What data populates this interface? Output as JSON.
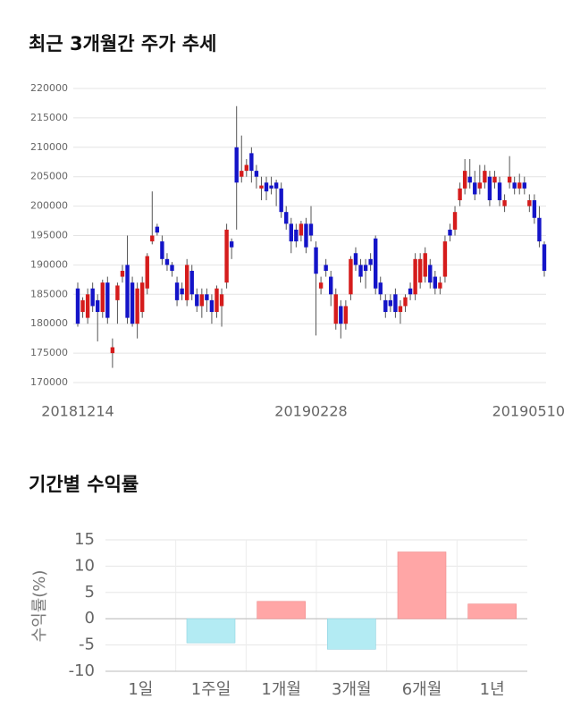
{
  "chart_data": [
    {
      "type": "candlestick",
      "title": "최근 3개월간 주가 추세",
      "categories": [
        "20181214",
        null,
        null,
        null,
        null,
        null,
        null,
        null,
        null,
        null,
        null,
        null,
        null,
        null,
        null,
        null,
        null,
        null,
        null,
        null,
        null,
        null,
        null,
        null,
        null,
        null,
        null,
        null,
        null,
        null,
        null,
        null,
        null,
        null,
        null,
        null,
        null,
        null,
        null,
        null,
        null,
        null,
        null,
        null,
        null,
        null,
        null,
        "20190228",
        null,
        null,
        null,
        null,
        null,
        null,
        null,
        null,
        null,
        null,
        null,
        null,
        null,
        null,
        null,
        null,
        null,
        null,
        null,
        null,
        null,
        null,
        null,
        null,
        null,
        null,
        null,
        null,
        null,
        null,
        null,
        null,
        null,
        null,
        null,
        null,
        null,
        null,
        null,
        null,
        null,
        null,
        null,
        null,
        null,
        null,
        "20190510"
      ],
      "open": [
        186000,
        182000,
        181000,
        186000,
        184000,
        182000,
        187000,
        175000,
        184000,
        188000,
        190000,
        187000,
        180000,
        182000,
        186000,
        194000,
        196500,
        194000,
        191000,
        190000,
        187000,
        186000,
        184000,
        189000,
        185000,
        183000,
        185000,
        184000,
        182000,
        183000,
        187000,
        194000,
        210000,
        205000,
        206000,
        209000,
        206000,
        203000,
        204000,
        203500,
        204000,
        203000,
        199000,
        197000,
        196000,
        195000,
        197000,
        197000,
        193000,
        186000,
        190000,
        188000,
        180000,
        183000,
        180000,
        185000,
        192000,
        190000,
        190000,
        191000,
        194500,
        187000,
        184000,
        184000,
        185000,
        182000,
        183000,
        186000,
        185000,
        187000,
        188000,
        190000,
        188000,
        186000,
        188000,
        196000,
        196000,
        201000,
        203000,
        205000,
        204000,
        203000,
        204000,
        205000,
        204000,
        204000,
        200000,
        204000,
        204000,
        203000,
        204000,
        200000,
        201000,
        198000,
        193500
      ],
      "close": [
        180000,
        184000,
        185000,
        183000,
        182000,
        187000,
        181000,
        176000,
        186500,
        189000,
        181000,
        180000,
        186000,
        187000,
        191500,
        195000,
        195500,
        191000,
        190000,
        189000,
        184000,
        185000,
        190000,
        185000,
        183000,
        185000,
        184000,
        182000,
        186000,
        185000,
        196000,
        193000,
        204000,
        206000,
        207000,
        206000,
        205000,
        203500,
        202500,
        203000,
        203000,
        199000,
        197000,
        194000,
        194000,
        197000,
        193000,
        195000,
        188500,
        187000,
        189000,
        185000,
        185000,
        180000,
        183000,
        191000,
        190000,
        188000,
        189000,
        190000,
        186000,
        185000,
        182000,
        183000,
        182000,
        183000,
        184500,
        185000,
        191000,
        191000,
        192000,
        187000,
        186000,
        187000,
        194000,
        195000,
        199000,
        203000,
        206000,
        204000,
        202000,
        204000,
        206000,
        201000,
        205000,
        201000,
        201000,
        205000,
        203000,
        204000,
        203000,
        201000,
        198000,
        194000,
        189000
      ],
      "high": [
        187000,
        184500,
        186000,
        187000,
        185000,
        187500,
        188000,
        177500,
        187000,
        190000,
        195000,
        188000,
        187000,
        188000,
        192000,
        202500,
        197000,
        195000,
        192000,
        190500,
        188000,
        187000,
        191000,
        190000,
        186000,
        186000,
        186000,
        185000,
        186500,
        186000,
        197000,
        194500,
        217000,
        212000,
        208000,
        210000,
        207000,
        205000,
        205000,
        205000,
        204500,
        204000,
        200000,
        198000,
        197000,
        197500,
        198000,
        200000,
        194000,
        188000,
        191000,
        189000,
        186000,
        184000,
        184000,
        191500,
        193000,
        191000,
        191000,
        192000,
        195000,
        188000,
        185000,
        185000,
        186000,
        184000,
        185000,
        187000,
        192000,
        192000,
        193000,
        191000,
        189000,
        188000,
        195000,
        197000,
        200000,
        204000,
        208000,
        208000,
        206000,
        207000,
        207000,
        206000,
        206000,
        205000,
        202000,
        208500,
        205000,
        205500,
        205000,
        202000,
        202000,
        200000,
        194000
      ],
      "low": [
        179500,
        181000,
        180000,
        182000,
        177000,
        181000,
        180000,
        172500,
        180000,
        187000,
        180000,
        179500,
        177500,
        181000,
        185000,
        193500,
        195000,
        190000,
        189000,
        188000,
        183000,
        184000,
        183000,
        184000,
        182000,
        181000,
        182000,
        180000,
        181000,
        179500,
        186000,
        191000,
        196000,
        204000,
        205000,
        204000,
        203000,
        201000,
        201000,
        202000,
        200000,
        198000,
        196000,
        192000,
        193000,
        194000,
        192000,
        194000,
        178000,
        185000,
        188000,
        183000,
        179000,
        177500,
        179000,
        184000,
        189000,
        187000,
        186000,
        189000,
        185000,
        184000,
        181000,
        182000,
        181000,
        180000,
        182000,
        184000,
        184000,
        186000,
        187000,
        186000,
        185000,
        185000,
        187000,
        194000,
        195000,
        200000,
        202000,
        203000,
        201000,
        202000,
        203000,
        200000,
        203000,
        200000,
        199000,
        203000,
        202000,
        202000,
        202000,
        199000,
        197000,
        193000,
        188000
      ],
      "up_color": "#d51c1c",
      "down_color": "#1414c8",
      "ylim": [
        170000,
        220000
      ],
      "yticks": [
        170000,
        175000,
        180000,
        185000,
        190000,
        195000,
        200000,
        205000,
        210000,
        215000,
        220000
      ],
      "grid": true
    },
    {
      "type": "bar",
      "title": "기간별 수익률",
      "y_label": "수익률(%)",
      "categories": [
        "1일",
        "1주일",
        "1개월",
        "3개월",
        "6개월",
        "1년"
      ],
      "values": [
        0,
        -4.6,
        3.3,
        -5.8,
        12.7,
        2.8
      ],
      "colors": [
        "#ffa6a6",
        "#b3ebf3",
        "#ffa6a6",
        "#b3ebf3",
        "#ffa6a6",
        "#ffa6a6"
      ],
      "ylim": [
        -10,
        15
      ],
      "yticks": [
        -10,
        -5,
        0,
        5,
        10,
        15
      ],
      "grid": true
    }
  ]
}
